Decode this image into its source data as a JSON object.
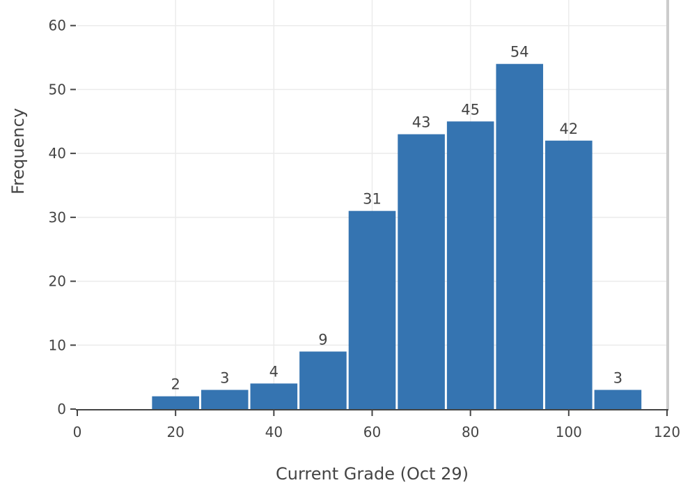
{
  "chart_data": {
    "type": "bar",
    "title": "",
    "xlabel": "Current Grade (Oct 29)",
    "ylabel": "Frequency",
    "xlim": [
      0,
      120
    ],
    "ylim": [
      0,
      64
    ],
    "bin_width": 10,
    "x_ticks": [
      0,
      20,
      40,
      60,
      80,
      100,
      120
    ],
    "y_ticks": [
      0,
      10,
      20,
      30,
      40,
      50,
      60
    ],
    "grid": true,
    "legend": "none",
    "bars": [
      {
        "x_start": 15,
        "x_end": 25,
        "value": 2,
        "label": "2"
      },
      {
        "x_start": 25,
        "x_end": 35,
        "value": 3,
        "label": "3"
      },
      {
        "x_start": 35,
        "x_end": 45,
        "value": 4,
        "label": "4"
      },
      {
        "x_start": 45,
        "x_end": 55,
        "value": 9,
        "label": "9"
      },
      {
        "x_start": 55,
        "x_end": 65,
        "value": 31,
        "label": "31"
      },
      {
        "x_start": 65,
        "x_end": 75,
        "value": 43,
        "label": "43"
      },
      {
        "x_start": 75,
        "x_end": 85,
        "value": 45,
        "label": "45"
      },
      {
        "x_start": 85,
        "x_end": 95,
        "value": 54,
        "label": "54"
      },
      {
        "x_start": 95,
        "x_end": 105,
        "value": 42,
        "label": "42"
      },
      {
        "x_start": 105,
        "x_end": 115,
        "value": 3,
        "label": "3"
      }
    ],
    "colors": {
      "bar": "#3574b1",
      "grid": "#ebebeb",
      "axis": "#444444",
      "frame": "#cccccc"
    }
  }
}
